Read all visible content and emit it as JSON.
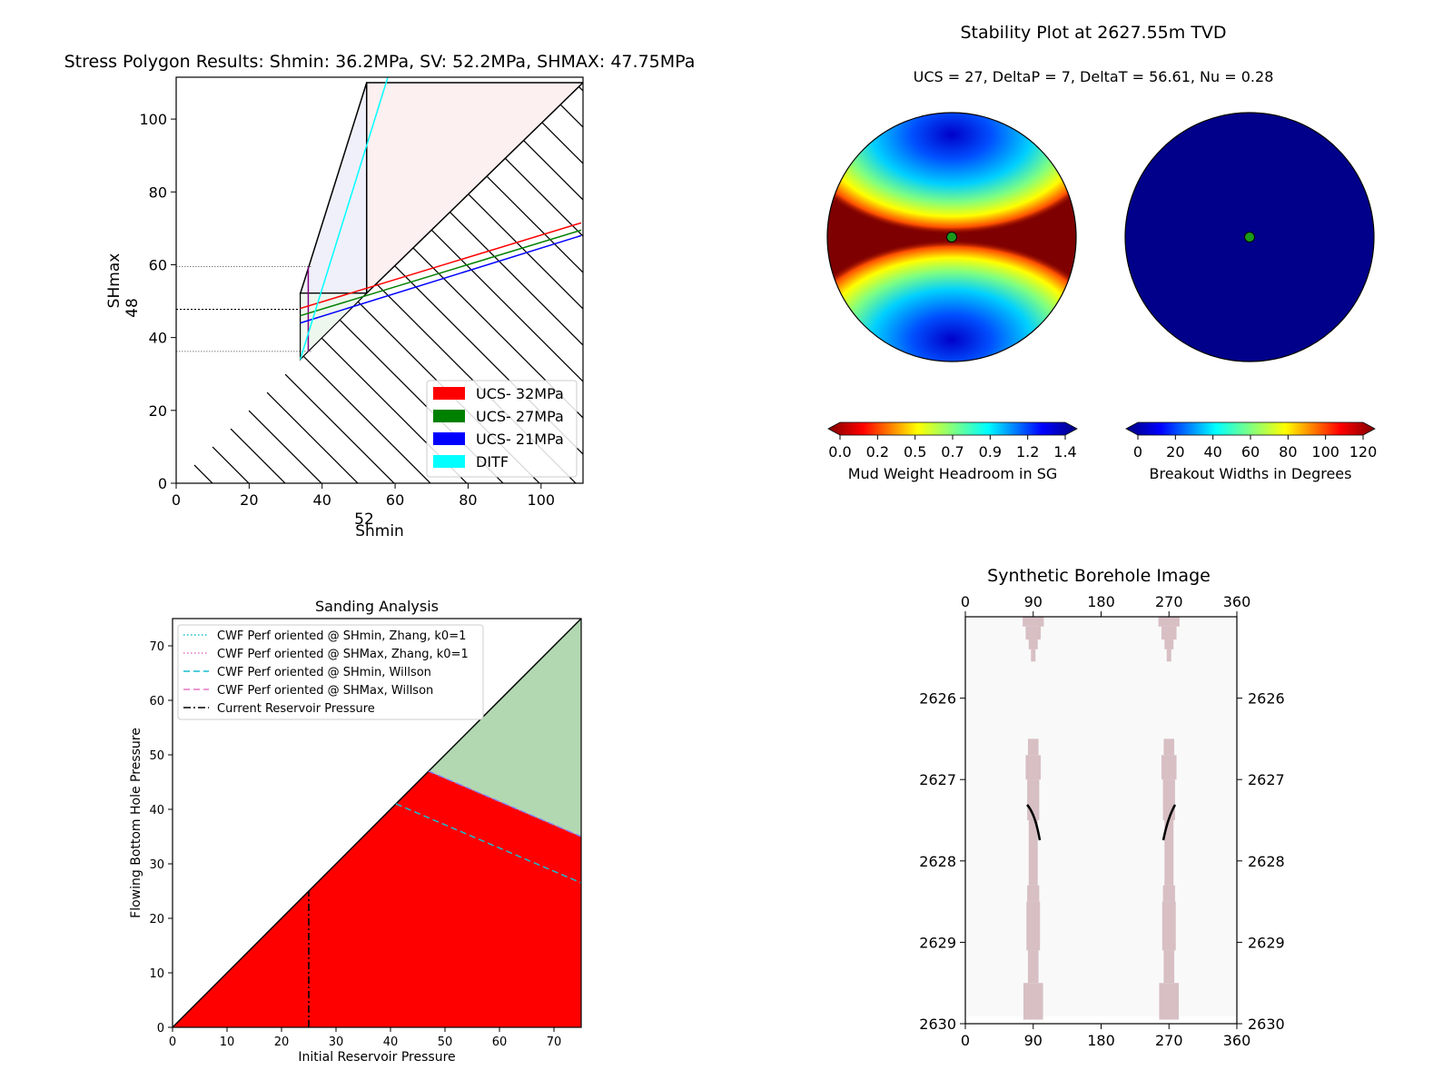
{
  "stress_polygon": {
    "title": "Stress Polygon Results: Shmin: 36.2MPa, SV: 52.2MPa, SHMAX: 47.75MPa",
    "xlabel": "Shmin",
    "ylabel": "SHmax",
    "x_marker_label": "52",
    "y_marker_label": "48",
    "xticks": [
      "0",
      "20",
      "40",
      "60",
      "80",
      "100"
    ],
    "yticks": [
      "0",
      "20",
      "40",
      "60",
      "80",
      "100"
    ],
    "legend": [
      "UCS- 32MPa",
      "UCS- 27MPa",
      "UCS- 21MPa",
      "DITF"
    ],
    "colors": {
      "ucs32": "#ff0000",
      "ucs27": "#008000",
      "ucs21": "#0000ff",
      "ditf": "#00ffff",
      "poly_pink": "#fdf0f0",
      "poly_lav": "#f0f0fb",
      "poly_green": "#eef7ee",
      "purple": "#800080"
    }
  },
  "stability": {
    "title": "Stability Plot at 2627.55m TVD",
    "subtitle": "UCS = 27, DeltaP = 7, DeltaT = 56.61, Nu = 0.28",
    "cbar1_label": "Mud Weight Headroom in SG",
    "cbar1_ticks": [
      "0.0",
      "0.2",
      "0.5",
      "0.7",
      "0.9",
      "1.2",
      "1.4"
    ],
    "cbar2_label": "Breakout Widths in Degrees",
    "cbar2_ticks": [
      "0",
      "20",
      "40",
      "60",
      "80",
      "100",
      "120"
    ]
  },
  "sanding": {
    "title": "Sanding Analysis",
    "xlabel": "Initial Reservoir Pressure",
    "ylabel": "Flowing Bottom Hole Pressure",
    "xticks": [
      "0",
      "10",
      "20",
      "30",
      "40",
      "50",
      "60",
      "70"
    ],
    "yticks": [
      "0",
      "10",
      "20",
      "30",
      "40",
      "50",
      "60",
      "70"
    ],
    "legend": [
      "CWF Perf oriented @ SHmin, Zhang, k0=1",
      "CWF Perf oriented @ SHMax, Zhang, k0=1",
      "CWF Perf oriented @ SHmin, Willson",
      "CWF Perf oriented @ SHMax, Willson",
      "Current Reservoir Pressure"
    ],
    "colors": {
      "red": "#ff0000",
      "green": "#b2d8b2",
      "cyan": "#17becf",
      "magenta": "#e377c2"
    }
  },
  "borehole": {
    "title": "Synthetic Borehole Image",
    "xticks": [
      "0",
      "90",
      "180",
      "270",
      "360"
    ],
    "yticks": [
      "2626",
      "2627",
      "2628",
      "2629",
      "2630"
    ],
    "colors": {
      "bg": "#f9f9f9",
      "breakout": "#d7bfc3"
    }
  },
  "chart_data": [
    {
      "type": "line",
      "title": "Stress Polygon Results: Shmin: 36.2MPa, SV: 52.2MPa, SHMAX: 47.75MPa",
      "xlabel": "Shmin",
      "ylabel": "SHmax",
      "xlim": [
        0,
        111.5
      ],
      "ylim": [
        0,
        111.5
      ],
      "series": [
        {
          "name": "UCS- 32MPa",
          "x": [
            34,
            111
          ],
          "y": [
            48,
            71.5
          ]
        },
        {
          "name": "UCS- 27MPa",
          "x": [
            34,
            111
          ],
          "y": [
            46,
            69.5
          ]
        },
        {
          "name": "UCS- 21MPa",
          "x": [
            34,
            111
          ],
          "y": [
            44,
            68
          ]
        },
        {
          "name": "DITF",
          "x": [
            34,
            58
          ],
          "y": [
            34,
            111.5
          ]
        }
      ],
      "shmin": 36.2,
      "sv": 52.2,
      "shmax": 47.75,
      "reference_lines_y": [
        59.5,
        47.75,
        36.2
      ]
    },
    {
      "type": "heatmap",
      "title": "Stability Plot at 2627.55m TVD",
      "panels": [
        {
          "name": "Mud Weight Headroom in SG",
          "range": [
            0,
            1.4
          ]
        },
        {
          "name": "Breakout Widths in Degrees",
          "range": [
            0,
            120
          ]
        }
      ]
    },
    {
      "type": "area",
      "title": "Sanding Analysis",
      "xlabel": "Initial Reservoir Pressure",
      "ylabel": "Flowing Bottom Hole Pressure",
      "xlim": [
        0,
        75
      ],
      "ylim": [
        0,
        75
      ],
      "series": [
        {
          "name": "CWF Perf oriented @ SHmin, Zhang, k0=1",
          "x": [
            47,
            75
          ],
          "y": [
            47,
            35
          ]
        },
        {
          "name": "CWF Perf oriented @ SHMax, Zhang, k0=1",
          "x": [
            47,
            75
          ],
          "y": [
            47,
            35
          ]
        },
        {
          "name": "CWF Perf oriented @ SHmin, Willson",
          "x": [
            41,
            75
          ],
          "y": [
            41,
            26.5
          ]
        },
        {
          "name": "CWF Perf oriented @ SHMax, Willson",
          "x": [
            47,
            75
          ],
          "y": [
            47,
            35
          ]
        },
        {
          "name": "Current Reservoir Pressure",
          "x": [
            25,
            25
          ],
          "y": [
            0,
            25
          ]
        }
      ]
    },
    {
      "type": "heatmap",
      "title": "Synthetic Borehole Image",
      "xlim": [
        0,
        360
      ],
      "ylim": [
        2630,
        2625
      ]
    }
  ]
}
